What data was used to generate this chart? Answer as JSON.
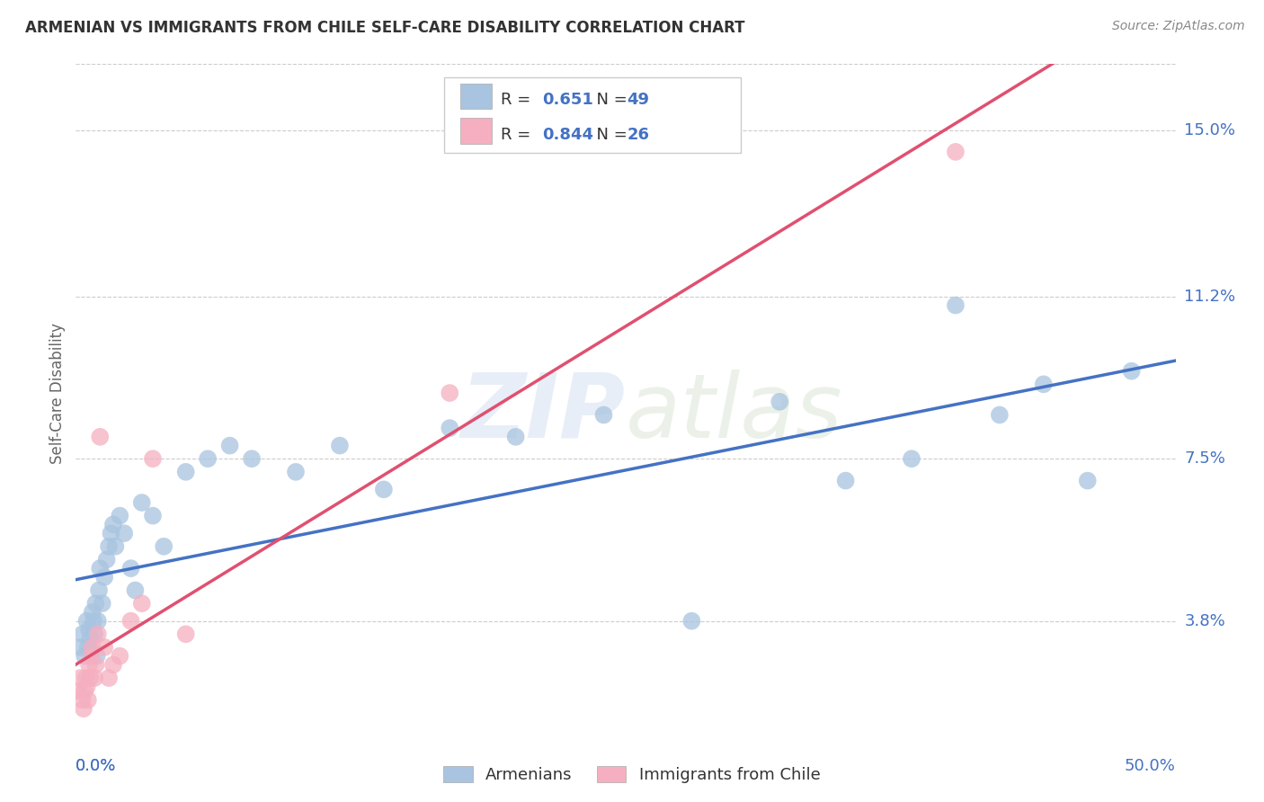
{
  "title": "ARMENIAN VS IMMIGRANTS FROM CHILE SELF-CARE DISABILITY CORRELATION CHART",
  "source": "Source: ZipAtlas.com",
  "ylabel": "Self-Care Disability",
  "ytick_labels": [
    "3.8%",
    "7.5%",
    "11.2%",
    "15.0%"
  ],
  "ytick_values": [
    3.8,
    7.5,
    11.2,
    15.0
  ],
  "xlim": [
    0.0,
    50.0
  ],
  "ylim": [
    1.5,
    16.5
  ],
  "watermark": "ZIPatlas",
  "legend_armenians_R": "0.651",
  "legend_armenians_N": "49",
  "legend_chile_R": "0.844",
  "legend_chile_N": "26",
  "armenians_color": "#a8c4e0",
  "chile_color": "#f5afc0",
  "line_armenians_color": "#4472c4",
  "line_chile_color": "#e05070",
  "title_color": "#333333",
  "source_color": "#888888",
  "axis_color": "#4472c4",
  "grid_color": "#cccccc",
  "armenians_x": [
    0.2,
    0.3,
    0.4,
    0.5,
    0.55,
    0.6,
    0.65,
    0.7,
    0.75,
    0.8,
    0.85,
    0.9,
    0.95,
    1.0,
    1.05,
    1.1,
    1.2,
    1.3,
    1.4,
    1.5,
    1.6,
    1.7,
    1.8,
    2.0,
    2.2,
    2.5,
    2.7,
    3.0,
    3.5,
    4.0,
    5.0,
    6.0,
    7.0,
    8.0,
    10.0,
    12.0,
    14.0,
    17.0,
    20.0,
    24.0,
    28.0,
    32.0,
    35.0,
    38.0,
    40.0,
    42.0,
    44.0,
    46.0,
    48.0
  ],
  "armenians_y": [
    3.2,
    3.5,
    3.0,
    3.8,
    3.2,
    3.6,
    3.4,
    3.1,
    4.0,
    3.8,
    3.5,
    4.2,
    3.0,
    3.8,
    4.5,
    5.0,
    4.2,
    4.8,
    5.2,
    5.5,
    5.8,
    6.0,
    5.5,
    6.2,
    5.8,
    5.0,
    4.5,
    6.5,
    6.2,
    5.5,
    7.2,
    7.5,
    7.8,
    7.5,
    7.2,
    7.8,
    6.8,
    8.2,
    8.0,
    8.5,
    3.8,
    8.8,
    7.0,
    7.5,
    11.0,
    8.5,
    9.2,
    7.0,
    9.5
  ],
  "chile_x": [
    0.1,
    0.2,
    0.3,
    0.35,
    0.4,
    0.45,
    0.5,
    0.55,
    0.6,
    0.65,
    0.7,
    0.75,
    0.85,
    0.9,
    1.0,
    1.1,
    1.3,
    1.5,
    1.7,
    2.0,
    2.5,
    3.0,
    3.5,
    5.0,
    17.0,
    40.0
  ],
  "chile_y": [
    2.2,
    2.5,
    2.0,
    1.8,
    2.2,
    2.5,
    2.3,
    2.0,
    2.8,
    2.5,
    3.0,
    3.2,
    2.5,
    2.8,
    3.5,
    8.0,
    3.2,
    2.5,
    2.8,
    3.0,
    3.8,
    4.2,
    7.5,
    3.5,
    9.0,
    14.5
  ]
}
